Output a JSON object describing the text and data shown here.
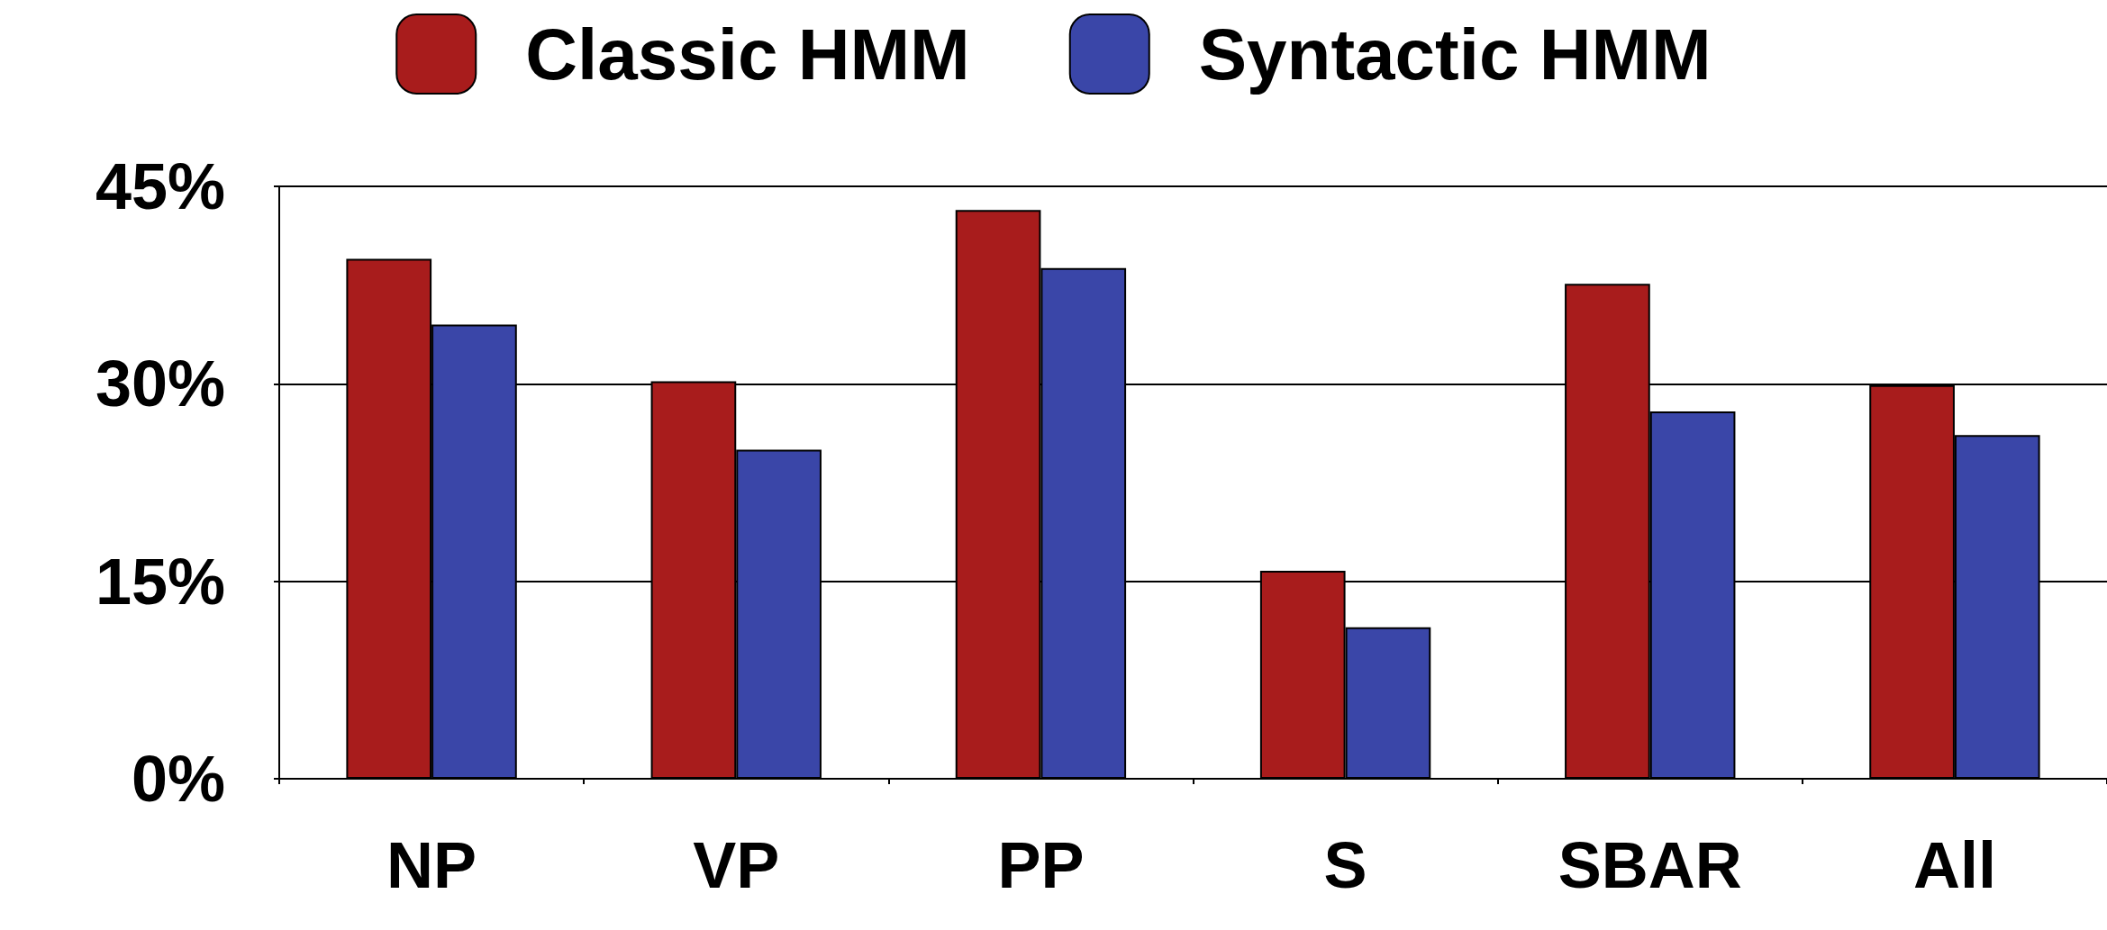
{
  "chart_data": {
    "type": "bar",
    "categories": [
      "NP",
      "VP",
      "PP",
      "S",
      "SBAR",
      "All"
    ],
    "series": [
      {
        "name": "Classic HMM",
        "color": "#a81c1c",
        "values": [
          39.5,
          30.2,
          43.2,
          15.8,
          37.6,
          29.9
        ]
      },
      {
        "name": "Syntactic HMM",
        "color": "#3a46a8",
        "values": [
          34.5,
          25.0,
          38.8,
          11.5,
          27.9,
          26.1
        ]
      }
    ],
    "ylim": [
      0,
      45
    ],
    "yticks": [
      {
        "value": 0,
        "label": "0%"
      },
      {
        "value": 15,
        "label": "15%"
      },
      {
        "value": 30,
        "label": "30%"
      },
      {
        "value": 45,
        "label": "45%"
      }
    ],
    "grid": "y",
    "legend": "top"
  }
}
